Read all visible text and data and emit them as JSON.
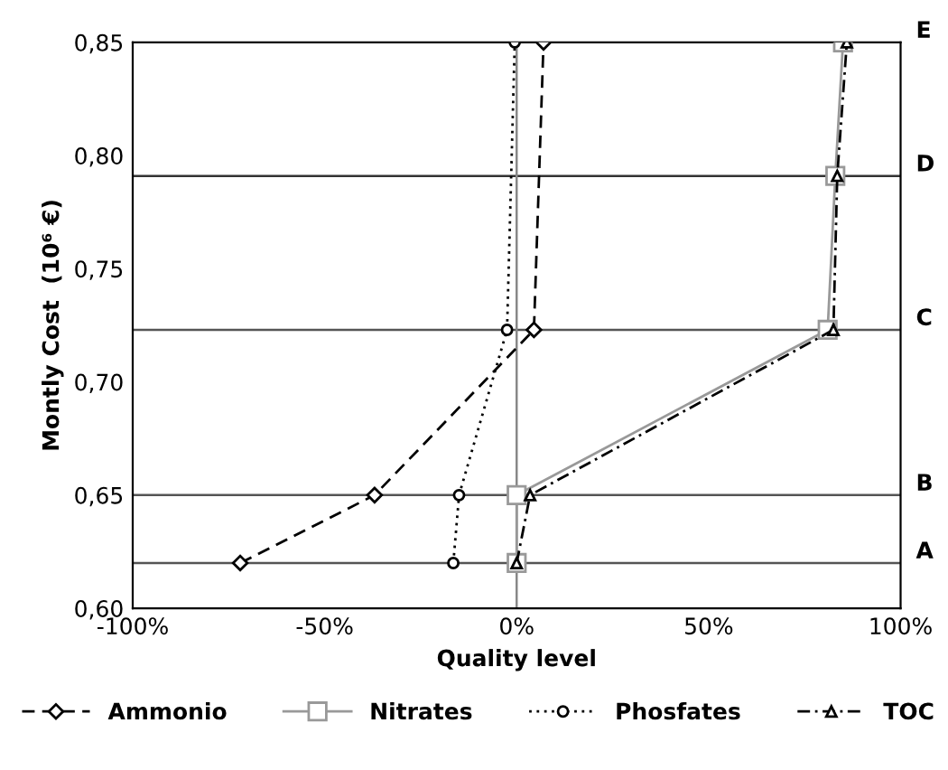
{
  "chart_data": {
    "type": "line",
    "xlabel": "Quality level",
    "ylabel": "Montly Cost  (10⁶ €)",
    "xlim": [
      -100,
      100
    ],
    "ylim": [
      0.6,
      0.85
    ],
    "xticks": [
      {
        "value": -100,
        "label": "-100%"
      },
      {
        "value": -50,
        "label": "-50%"
      },
      {
        "value": 0,
        "label": "0%"
      },
      {
        "value": 50,
        "label": "50%"
      },
      {
        "value": 100,
        "label": "100%"
      }
    ],
    "yticks": [
      {
        "value": 0.6,
        "label": "0,60"
      },
      {
        "value": 0.65,
        "label": "0,65"
      },
      {
        "value": 0.7,
        "label": "0,70"
      },
      {
        "value": 0.75,
        "label": "0,75"
      },
      {
        "value": 0.8,
        "label": "0,80"
      },
      {
        "value": 0.85,
        "label": "0,85"
      }
    ],
    "series": [
      {
        "name": "Ammonio",
        "color": "#000000",
        "marker": "diamond",
        "line_style": "dashed",
        "x": [
          -72,
          -37,
          4.5,
          7
        ],
        "values": [
          0.62,
          0.65,
          0.723,
          0.85
        ]
      },
      {
        "name": "Nitrates",
        "color": "#999999",
        "marker": "square",
        "line_style": "solid",
        "x": [
          0,
          0,
          81,
          83,
          85
        ],
        "values": [
          0.62,
          0.65,
          0.723,
          0.791,
          0.85
        ]
      },
      {
        "name": "Phosfates",
        "color": "#000000",
        "marker": "circle",
        "line_style": "dotted",
        "x": [
          -16.5,
          -15,
          -2.5,
          -0.5
        ],
        "values": [
          0.62,
          0.65,
          0.723,
          0.85
        ]
      },
      {
        "name": "TOC",
        "color": "#000000",
        "marker": "triangle",
        "line_style": "dashdot",
        "x": [
          0,
          3.5,
          82.5,
          83.5,
          86
        ],
        "values": [
          0.62,
          0.65,
          0.723,
          0.791,
          0.85
        ]
      }
    ],
    "ref_lines": [
      {
        "axis": "y",
        "value": 0.62,
        "label": "A",
        "color": "#555555"
      },
      {
        "axis": "y",
        "value": 0.65,
        "label": "B",
        "color": "#555555"
      },
      {
        "axis": "y",
        "value": 0.723,
        "label": "C",
        "color": "#555555"
      },
      {
        "axis": "y",
        "value": 0.791,
        "label": "D",
        "color": "#333333"
      },
      {
        "axis": "y",
        "value": 0.85,
        "label": "E",
        "color": "#000000"
      },
      {
        "axis": "x",
        "value": 0,
        "color": "#888888"
      }
    ],
    "legend": "bottom",
    "grid": false
  }
}
